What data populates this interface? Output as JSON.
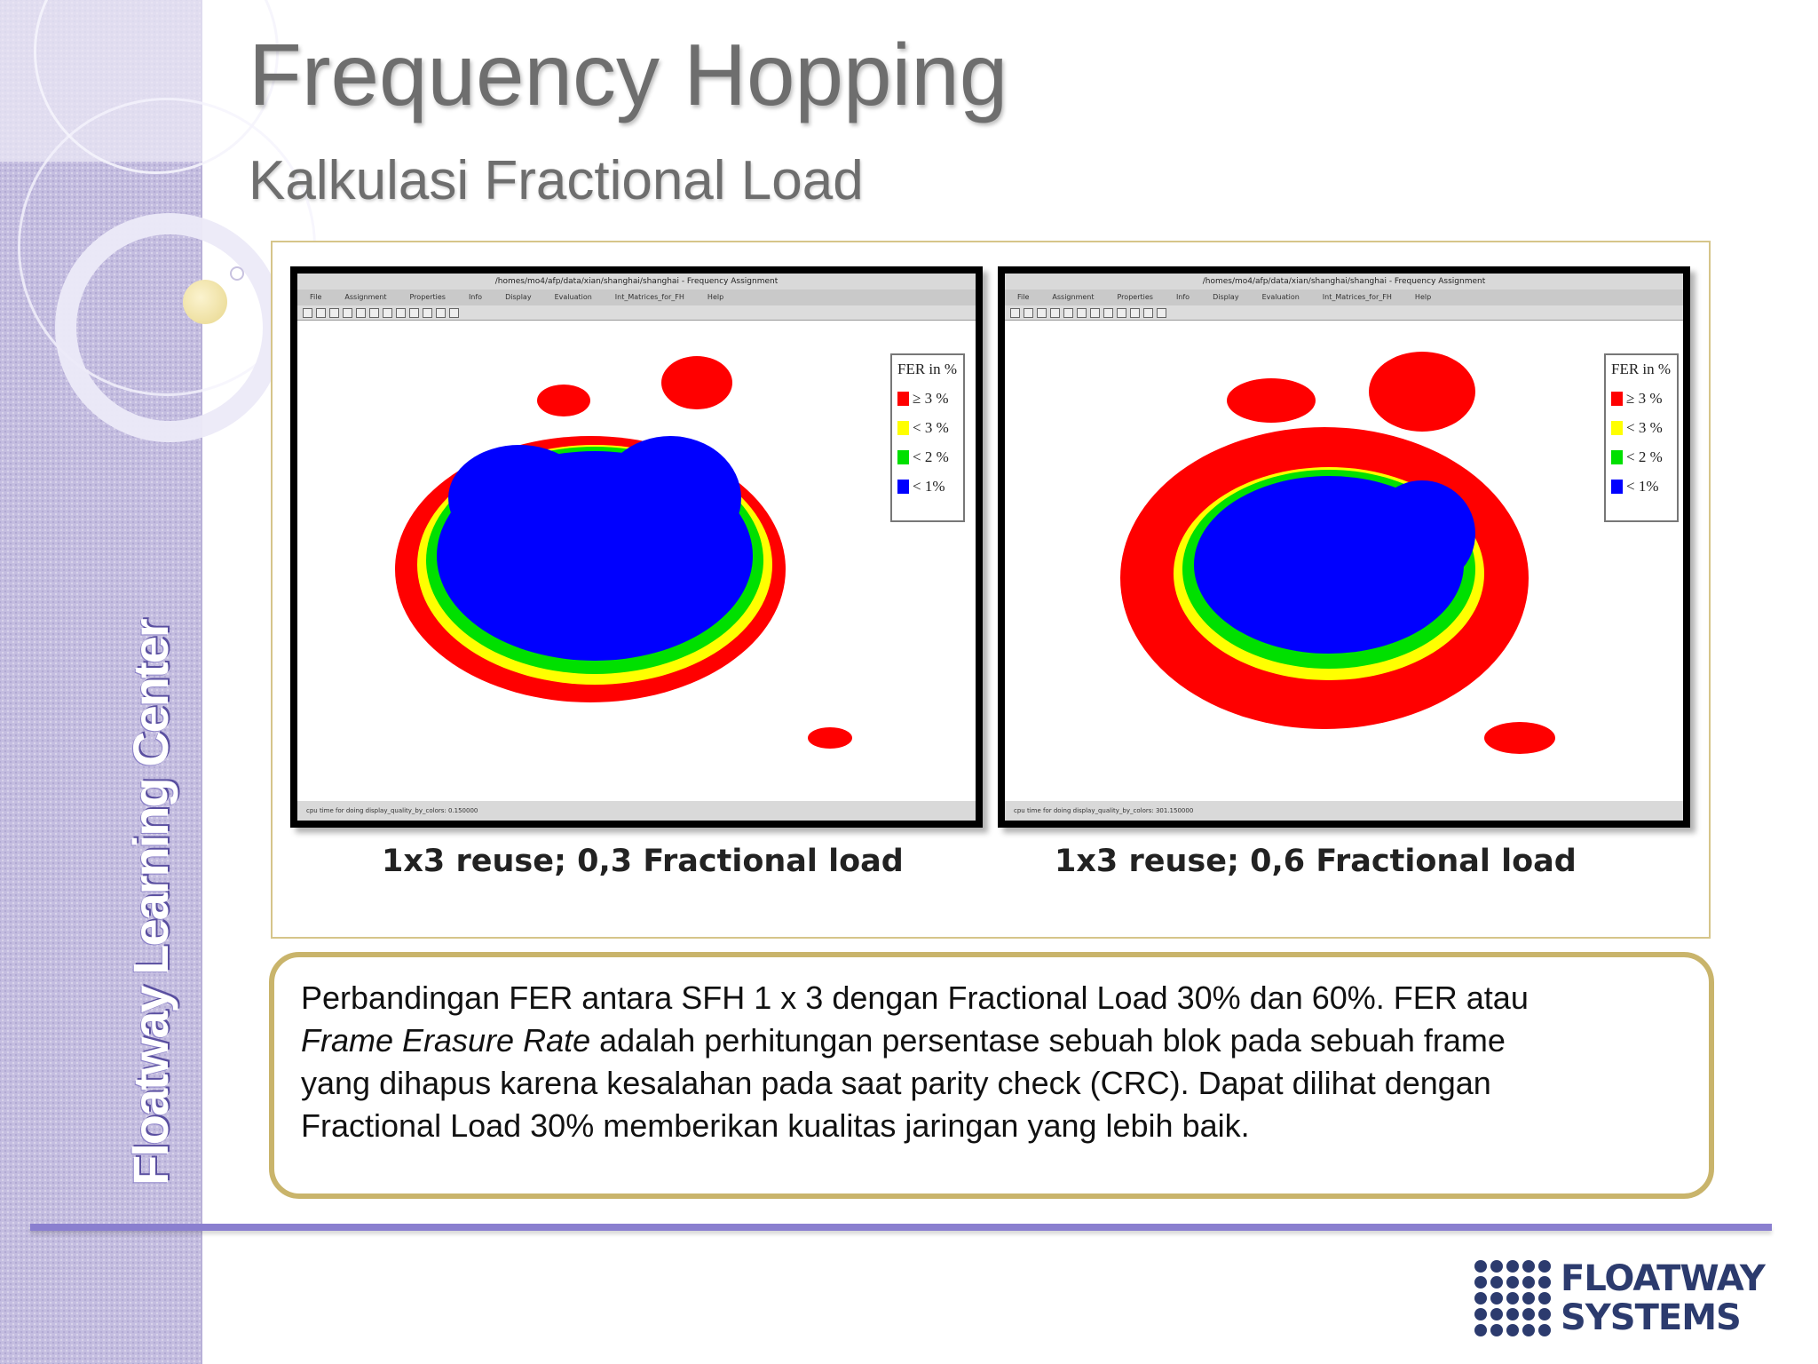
{
  "slide": {
    "title": "Frequency Hopping",
    "subtitle": "Kalkulasi Fractional Load",
    "sidebar_brand": "Floatway Learning Center"
  },
  "figures": [
    {
      "window_title": "/homes/mo4/afp/data/xian/shanghai/shanghai - Frequency Assignment",
      "menu": [
        "File",
        "Assignment",
        "Properties",
        "Info",
        "Display",
        "Evaluation",
        "Int_Matrices_for_FH",
        "Help"
      ],
      "status": "cpu time for doing display_quality_by_colors: 0.150000",
      "legend_title": "FER in %",
      "legend": [
        {
          "label": "≥ 3 %",
          "color": "#ff0000"
        },
        {
          "label": "< 3 %",
          "color": "#ffff00"
        },
        {
          "label": "< 2 %",
          "color": "#00e000"
        },
        {
          "label": "< 1%",
          "color": "#0000ff"
        }
      ],
      "caption": "1x3 reuse; 0,3 Fractional load"
    },
    {
      "window_title": "/homes/mo4/afp/data/xian/shanghai/shanghai - Frequency Assignment",
      "menu": [
        "File",
        "Assignment",
        "Properties",
        "Info",
        "Display",
        "Evaluation",
        "Int_Matrices_for_FH",
        "Help"
      ],
      "status": "cpu time for doing display_quality_by_colors: 301.150000",
      "legend_title": "FER in %",
      "legend": [
        {
          "label": "≥ 3 %",
          "color": "#ff0000"
        },
        {
          "label": "< 3 %",
          "color": "#ffff00"
        },
        {
          "label": "< 2 %",
          "color": "#00e000"
        },
        {
          "label": "< 1%",
          "color": "#0000ff"
        }
      ],
      "caption": "1x3 reuse; 0,6 Fractional load"
    }
  ],
  "description": {
    "line1": "Perbandingan FER antara SFH 1 x 3 dengan Fractional Load 30% dan 60%. FER atau",
    "line2_italic": "Frame Erasure Rate",
    "line2_rest": " adalah perhitungan persentase sebuah blok pada sebuah frame",
    "line3": "yang dihapus karena kesalahan pada saat parity check (CRC). Dapat dilihat dengan",
    "line4": "Fractional Load 30% memberikan kualitas jaringan yang lebih baik."
  },
  "logo": {
    "line1": "FLOATWAY",
    "line2": "SYSTEMS",
    "color": "#2c3b6e"
  },
  "colors": {
    "accent_line": "#8a7fcf",
    "box_border": "#c9b46b",
    "sidebar": "#c4bde0",
    "title_text": "#6e6e6e"
  }
}
